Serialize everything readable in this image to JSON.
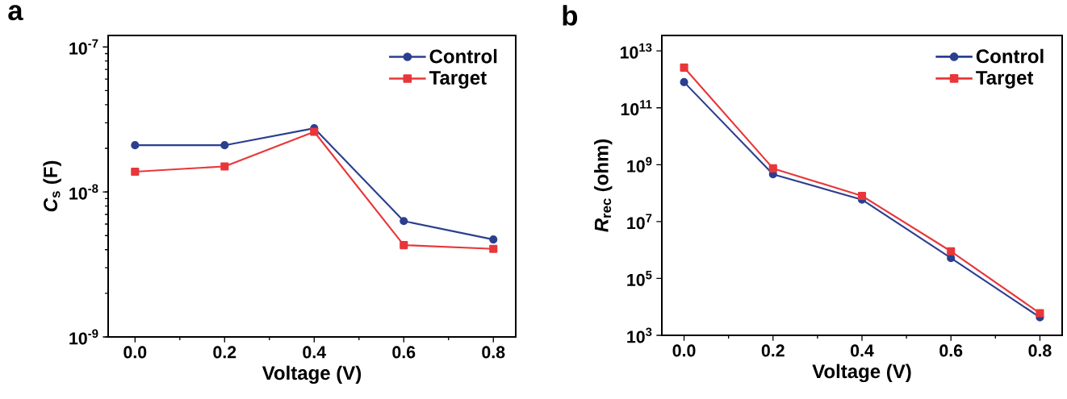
{
  "chart_data": [
    {
      "type": "line",
      "title": "a",
      "xlabel": "Voltage (V)",
      "ylabel": "*C*$_{s}$ (F)",
      "log": "y",
      "legend": "top right",
      "x": [
        0.0,
        0.2,
        0.4,
        0.6,
        0.8
      ],
      "xlim": [
        -0.06,
        0.85
      ],
      "xticks": [
        {
          "value": 0,
          "label": "0.0"
        },
        {
          "value": 0.2,
          "label": "0.2"
        },
        {
          "value": 0.4,
          "label": "0.4"
        },
        {
          "value": 0.6,
          "label": "0.6"
        },
        {
          "value": 0.8,
          "label": "0.8"
        }
      ],
      "ylim": [
        1e-09,
        1.2e-07
      ],
      "yticks": [
        {
          "value": 1e-09,
          "label": "10$^{-9}$"
        },
        {
          "value": 1e-08,
          "label": "10$^{-8}$"
        },
        {
          "value": 1e-07,
          "label": "10$^{-7}$"
        }
      ],
      "series": [
        {
          "name": "Control",
          "color": "#2b3f8f",
          "marker": "circle",
          "values": [
            2.1e-08,
            2.1e-08,
            2.75e-08,
            6.3e-09,
            4.7e-09
          ]
        },
        {
          "name": "Target",
          "color": "#e8373a",
          "marker": "square",
          "values": [
            1.38e-08,
            1.5e-08,
            2.6e-08,
            4.3e-09,
            4.05e-09
          ]
        }
      ]
    },
    {
      "type": "line",
      "title": "b",
      "xlabel": "Voltage (V)",
      "ylabel": "*R*$_{rec}$ (ohm)",
      "log": "y",
      "legend": "top right",
      "x": [
        0.0,
        0.2,
        0.4,
        0.6,
        0.8
      ],
      "xlim": [
        -0.05,
        0.85
      ],
      "xticks": [
        {
          "value": 0,
          "label": "0.0"
        },
        {
          "value": 0.2,
          "label": "0.2"
        },
        {
          "value": 0.4,
          "label": "0.4"
        },
        {
          "value": 0.6,
          "label": "0.6"
        },
        {
          "value": 0.8,
          "label": "0.8"
        }
      ],
      "ylim": [
        1000.0,
        35000000000000.0
      ],
      "yticks": [
        {
          "value": 1000.0,
          "label": "10$^{3}$"
        },
        {
          "value": 100000.0,
          "label": "10$^{5}$"
        },
        {
          "value": 10000000.0,
          "label": "10$^{7}$"
        },
        {
          "value": 1000000000.0,
          "label": "10$^{9}$"
        },
        {
          "value": 100000000000.0,
          "label": "10$^{11}$"
        },
        {
          "value": 10000000000000.0,
          "label": "10$^{13}$"
        }
      ],
      "series": [
        {
          "name": "Control",
          "color": "#2b3f8f",
          "marker": "circle",
          "values": [
            800000000000.0,
            460000000.0,
            59000000.0,
            520000.0,
            4300.0
          ]
        },
        {
          "name": "Target",
          "color": "#e8373a",
          "marker": "square",
          "values": [
            2600000000000.0,
            740000000.0,
            80000000.0,
            900000.0,
            6000.0
          ]
        }
      ]
    }
  ]
}
